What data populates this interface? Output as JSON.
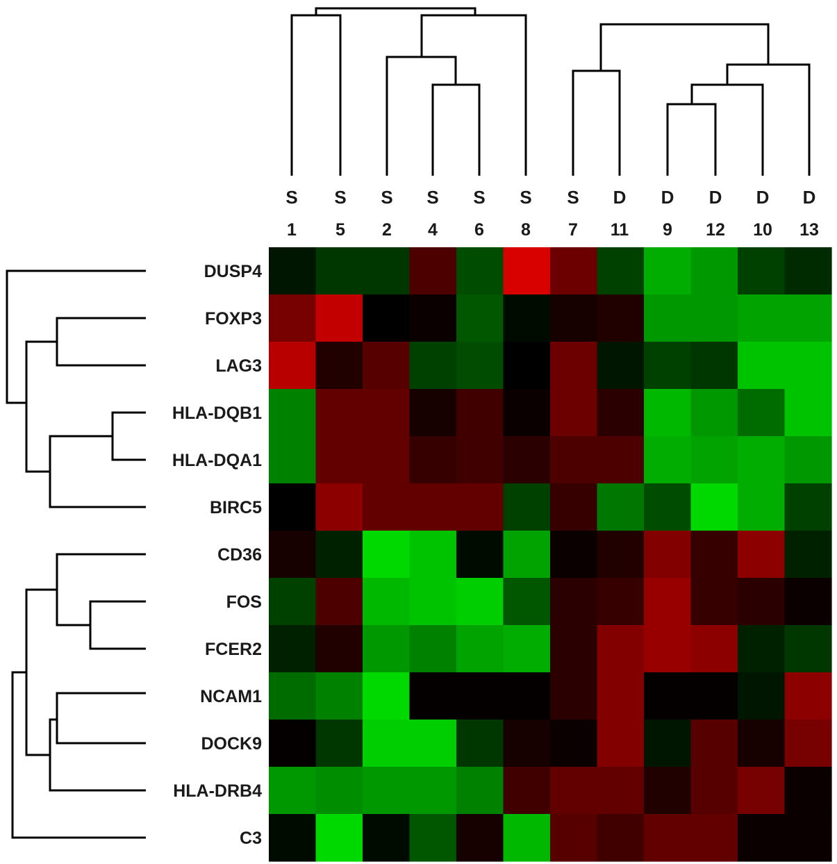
{
  "chart_data": {
    "type": "heatmap",
    "columns": [
      {
        "group": "S",
        "id": "1"
      },
      {
        "group": "S",
        "id": "5"
      },
      {
        "group": "S",
        "id": "2"
      },
      {
        "group": "S",
        "id": "4"
      },
      {
        "group": "S",
        "id": "6"
      },
      {
        "group": "S",
        "id": "8"
      },
      {
        "group": "S",
        "id": "7"
      },
      {
        "group": "D",
        "id": "11"
      },
      {
        "group": "D",
        "id": "9"
      },
      {
        "group": "D",
        "id": "12"
      },
      {
        "group": "D",
        "id": "10"
      },
      {
        "group": "D",
        "id": "13"
      }
    ],
    "rows": [
      "DUSP4",
      "FOXP3",
      "LAG3",
      "HLA-DQB1",
      "HLA-DQA1",
      "BIRC5",
      "CD36",
      "FOS",
      "FCER2",
      "NCAM1",
      "DOCK9",
      "HLA-DRB4",
      "C3"
    ],
    "values": [
      [
        -0.1,
        -0.25,
        -0.25,
        0.35,
        -0.35,
        1.0,
        0.5,
        -0.3,
        -0.8,
        -0.7,
        -0.3,
        -0.2
      ],
      [
        0.55,
        0.9,
        0.0,
        0.05,
        -0.4,
        -0.05,
        0.1,
        0.15,
        -0.7,
        -0.7,
        -0.75,
        -0.75
      ],
      [
        0.85,
        0.15,
        0.4,
        -0.3,
        -0.35,
        0.0,
        0.5,
        -0.1,
        -0.3,
        -0.25,
        -0.9,
        -0.9
      ],
      [
        -0.6,
        0.45,
        0.45,
        0.1,
        0.3,
        0.05,
        0.5,
        0.2,
        -0.85,
        -0.7,
        -0.5,
        -0.9
      ],
      [
        -0.6,
        0.45,
        0.45,
        0.25,
        0.3,
        0.2,
        0.35,
        0.35,
        -0.8,
        -0.75,
        -0.8,
        -0.7
      ],
      [
        0.0,
        0.65,
        0.45,
        0.45,
        0.45,
        -0.3,
        0.25,
        -0.55,
        -0.35,
        -1.0,
        -0.8,
        -0.3
      ],
      [
        0.1,
        -0.15,
        -1.0,
        -0.9,
        -0.05,
        -0.75,
        0.05,
        0.15,
        0.6,
        0.25,
        0.65,
        -0.15
      ],
      [
        -0.3,
        0.35,
        -0.85,
        -0.9,
        -0.95,
        -0.4,
        0.2,
        0.25,
        0.7,
        0.25,
        0.2,
        0.05
      ],
      [
        -0.15,
        0.15,
        -0.7,
        -0.6,
        -0.75,
        -0.8,
        0.2,
        0.6,
        0.7,
        0.65,
        -0.15,
        -0.25
      ],
      [
        -0.5,
        -0.6,
        -1.0,
        0.02,
        0.02,
        0.02,
        0.2,
        0.6,
        0.02,
        0.02,
        -0.1,
        0.65
      ],
      [
        0.02,
        -0.25,
        -0.95,
        -0.95,
        -0.25,
        0.1,
        0.05,
        0.6,
        -0.1,
        0.4,
        0.1,
        0.55
      ],
      [
        -0.7,
        -0.65,
        -0.7,
        -0.7,
        -0.6,
        0.3,
        0.45,
        0.45,
        0.15,
        0.4,
        0.55,
        0.05
      ],
      [
        -0.05,
        -1.0,
        -0.05,
        -0.4,
        0.1,
        -0.85,
        0.4,
        0.3,
        0.45,
        0.45,
        0.05,
        0.05
      ]
    ],
    "color_low": "#00ff00",
    "color_mid": "#000000",
    "color_high": "#ff0000",
    "value_range": [
      -1,
      1
    ]
  }
}
